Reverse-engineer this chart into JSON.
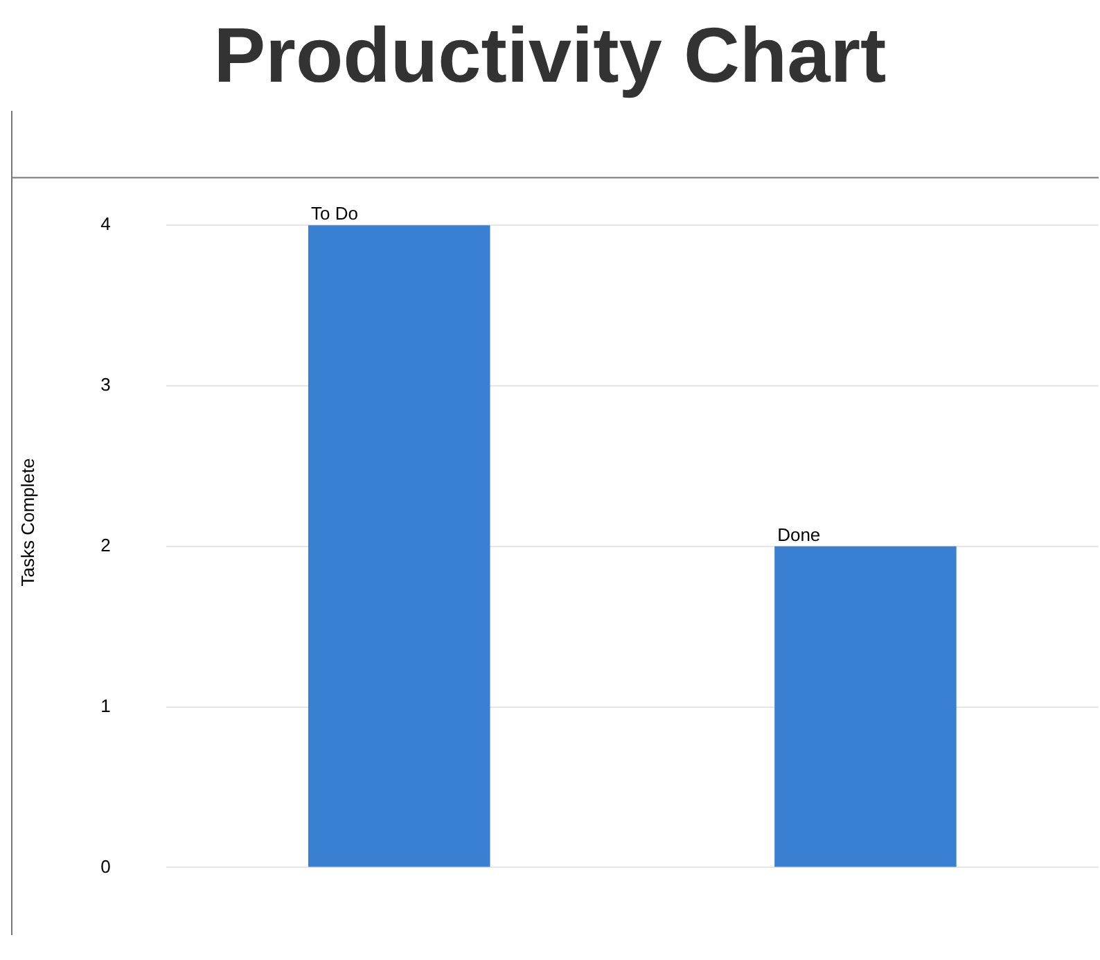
{
  "chart_data": {
    "type": "bar",
    "title": "Productivity Chart",
    "ylabel": "Tasks Complete",
    "categories": [
      "To Do",
      "Done"
    ],
    "values": [
      4,
      2
    ],
    "color": "#3a80d2",
    "ylim": [
      0,
      4.3
    ],
    "yticks": [
      0,
      1,
      2,
      3,
      4
    ],
    "grid": "y",
    "legend": false
  }
}
